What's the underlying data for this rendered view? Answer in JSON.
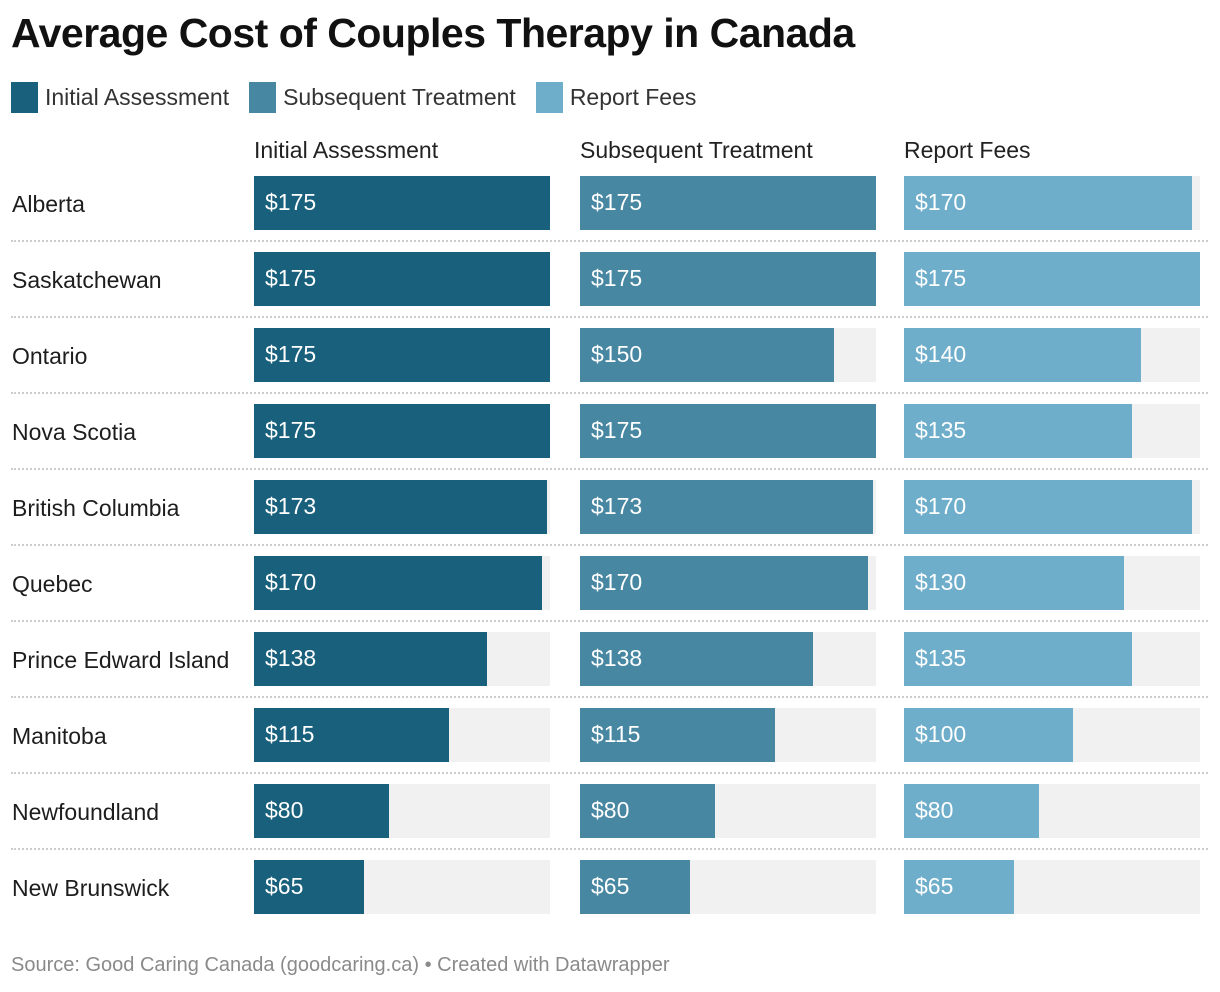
{
  "title": "Average Cost of Couples Therapy in Canada",
  "legend": [
    {
      "label": "Initial Assessment",
      "color": "#18607b"
    },
    {
      "label": "Subsequent Treatment",
      "color": "#4787a2"
    },
    {
      "label": "Report Fees",
      "color": "#6eaecb"
    }
  ],
  "footer": {
    "source": "Source: Good Caring Canada (goodcaring.ca)",
    "separator": "•",
    "credit": "Created with Datawrapper"
  },
  "chart_data": {
    "type": "bar",
    "orientation": "horizontal",
    "title": "Average Cost of Couples Therapy in Canada",
    "categories": [
      "Alberta",
      "Saskatchewan",
      "Ontario",
      "Nova Scotia",
      "British Columbia",
      "Quebec",
      "Prince Edward Island",
      "Manitoba",
      "Newfoundland",
      "New Brunswick"
    ],
    "series": [
      {
        "name": "Initial Assessment",
        "color": "#18607b",
        "values": [
          175,
          175,
          175,
          175,
          173,
          170,
          138,
          115,
          80,
          65
        ],
        "labels": [
          "$175",
          "$175",
          "$175",
          "$175",
          "$173",
          "$170",
          "$138",
          "$115",
          "$80",
          "$65"
        ]
      },
      {
        "name": "Subsequent Treatment",
        "color": "#4787a2",
        "values": [
          175,
          175,
          150,
          175,
          173,
          170,
          138,
          115,
          80,
          65
        ],
        "labels": [
          "$175",
          "$175",
          "$150",
          "$175",
          "$173",
          "$170",
          "$138",
          "$115",
          "$80",
          "$65"
        ]
      },
      {
        "name": "Report Fees",
        "color": "#6eaecb",
        "values": [
          170,
          175,
          140,
          135,
          170,
          130,
          135,
          100,
          80,
          65
        ],
        "labels": [
          "$170",
          "$175",
          "$140",
          "$135",
          "$170",
          "$130",
          "$135",
          "$100",
          "$80",
          "$65"
        ]
      }
    ],
    "xlim": [
      0,
      175
    ],
    "value_prefix": "$",
    "track_color": "#f1f1f1",
    "legend_position": "top-left",
    "grid": false
  }
}
